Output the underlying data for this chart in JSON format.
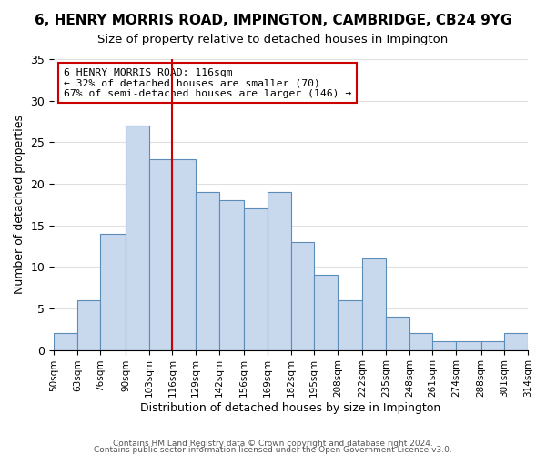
{
  "title": "6, HENRY MORRIS ROAD, IMPINGTON, CAMBRIDGE, CB24 9YG",
  "subtitle": "Size of property relative to detached houses in Impington",
  "xlabel": "Distribution of detached houses by size in Impington",
  "ylabel": "Number of detached properties",
  "bar_color": "#c8d9ee",
  "bar_edge_color": "#5b8db8",
  "bin_edges": [
    50,
    63,
    76,
    90,
    103,
    116,
    129,
    142,
    156,
    169,
    182,
    195,
    208,
    222,
    235,
    248,
    261,
    274,
    288,
    301,
    314
  ],
  "counts": [
    2,
    6,
    14,
    27,
    23,
    23,
    19,
    18,
    17,
    19,
    13,
    9,
    6,
    11,
    4,
    2,
    1,
    1,
    1,
    2
  ],
  "tick_labels": [
    "50sqm",
    "63sqm",
    "76sqm",
    "90sqm",
    "103sqm",
    "116sqm",
    "129sqm",
    "142sqm",
    "156sqm",
    "169sqm",
    "182sqm",
    "195sqm",
    "208sqm",
    "222sqm",
    "235sqm",
    "248sqm",
    "261sqm",
    "274sqm",
    "288sqm",
    "301sqm",
    "314sqm"
  ],
  "vline_x": 116,
  "vline_color": "#cc0000",
  "annotation_title": "6 HENRY MORRIS ROAD: 116sqm",
  "annotation_line1": "← 32% of detached houses are smaller (70)",
  "annotation_line2": "67% of semi-detached houses are larger (146) →",
  "annotation_box_color": "#ffffff",
  "annotation_box_edge": "#cc0000",
  "footer1": "Contains HM Land Registry data © Crown copyright and database right 2024.",
  "footer2": "Contains public sector information licensed under the Open Government Licence v3.0.",
  "ylim": [
    0,
    35
  ],
  "background_color": "#ffffff",
  "grid_color": "#e0e0e0"
}
